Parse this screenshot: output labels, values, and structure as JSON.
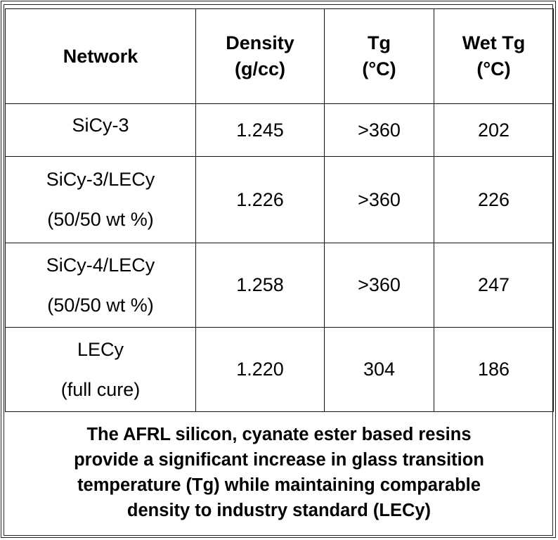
{
  "table": {
    "headers": [
      {
        "lines": [
          "Network"
        ]
      },
      {
        "lines": [
          "Density",
          "(g/cc)"
        ]
      },
      {
        "lines": [
          "Tg",
          "(°C)"
        ]
      },
      {
        "lines": [
          "Wet Tg",
          "(°C)"
        ]
      }
    ],
    "rows": [
      {
        "network": [
          "SiCy-3"
        ],
        "density": "1.245",
        "tg": ">360",
        "wet_tg": "202"
      },
      {
        "network": [
          "SiCy-3/LECy",
          "(50/50 wt %)"
        ],
        "density": "1.226",
        "tg": ">360",
        "wet_tg": "226"
      },
      {
        "network": [
          "SiCy-4/LECy",
          "(50/50 wt %)"
        ],
        "density": "1.258",
        "tg": ">360",
        "wet_tg": "247"
      },
      {
        "network": [
          "LECy",
          "(full cure)"
        ],
        "density": "1.220",
        "tg": "304",
        "wet_tg": "186"
      }
    ]
  },
  "caption": {
    "lines": [
      "The AFRL silicon, cyanate ester based resins",
      "provide a significant increase in glass transition",
      "temperature (Tg) while maintaining comparable",
      "density to industry standard (LECy)"
    ]
  }
}
